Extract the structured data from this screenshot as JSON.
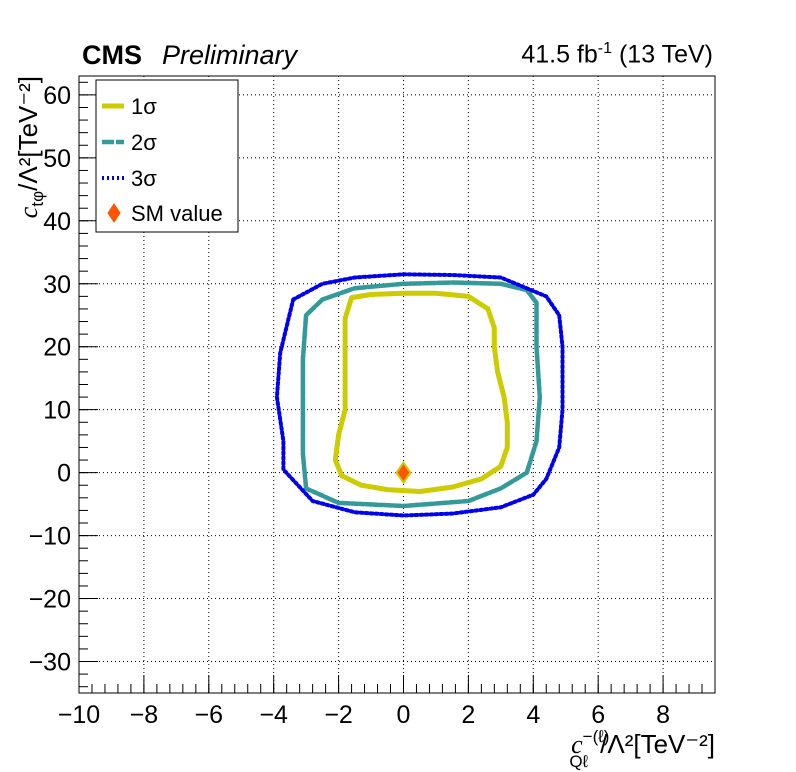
{
  "header": {
    "experiment": "CMS",
    "status": "Preliminary",
    "lumi_value": "41.5 fb",
    "lumi_exp": "-1",
    "energy": " (13 TeV)"
  },
  "chart_data": {
    "type": "contour",
    "xlim": [
      -10,
      9.6
    ],
    "ylim": [
      -35,
      63
    ],
    "xticks": [
      -10,
      -8,
      -6,
      -4,
      -2,
      0,
      2,
      4,
      6,
      8
    ],
    "yticks": [
      -30,
      -20,
      -10,
      0,
      10,
      20,
      30,
      40,
      50,
      60
    ],
    "xtick_labels": [
      "−10",
      "−8",
      "−6",
      "−4",
      "−2",
      "0",
      "2",
      "4",
      "6",
      "8"
    ],
    "ytick_labels": [
      "−30",
      "−20",
      "−10",
      "0",
      "10",
      "20",
      "30",
      "40",
      "50",
      "60"
    ],
    "grid": true,
    "legend_position": "top-left",
    "xlabel": {
      "c": "c",
      "sup": "−(ℓ)",
      "sub": "Qℓ",
      "rest": "/Λ²[TeV⁻²]"
    },
    "ylabel": {
      "c": "c",
      "sub": "tφ",
      "rest": "/Λ²[TeV⁻²]"
    },
    "series": [
      {
        "name": "1σ",
        "color": "#cccc00",
        "style": "solid",
        "points": [
          [
            -1.6,
            27.8
          ],
          [
            -1.0,
            28.3
          ],
          [
            0.0,
            28.5
          ],
          [
            1.0,
            28.5
          ],
          [
            2.0,
            28.0
          ],
          [
            2.6,
            26.0
          ],
          [
            2.8,
            23.0
          ],
          [
            2.8,
            20.0
          ],
          [
            2.9,
            16.0
          ],
          [
            3.1,
            12.0
          ],
          [
            3.2,
            8.0
          ],
          [
            3.2,
            4.0
          ],
          [
            3.0,
            1.0
          ],
          [
            2.4,
            -1.0
          ],
          [
            1.5,
            -2.3
          ],
          [
            0.5,
            -3.0
          ],
          [
            -0.5,
            -2.7
          ],
          [
            -1.3,
            -2.0
          ],
          [
            -1.9,
            -0.5
          ],
          [
            -2.1,
            2.0
          ],
          [
            -2.0,
            6.0
          ],
          [
            -1.8,
            10.0
          ],
          [
            -1.8,
            14.0
          ],
          [
            -1.8,
            18.0
          ],
          [
            -1.8,
            21.5
          ],
          [
            -1.8,
            24.5
          ],
          [
            -1.6,
            27.8
          ]
        ]
      },
      {
        "name": "2σ",
        "color": "#339999",
        "style": "dashed",
        "points": [
          [
            -3.0,
            25.0
          ],
          [
            -2.5,
            27.5
          ],
          [
            -1.5,
            29.3
          ],
          [
            0.0,
            30.0
          ],
          [
            1.5,
            30.2
          ],
          [
            3.0,
            30.0
          ],
          [
            3.8,
            29.0
          ],
          [
            4.1,
            27.0
          ],
          [
            4.1,
            20.0
          ],
          [
            4.2,
            12.0
          ],
          [
            4.1,
            5.0
          ],
          [
            3.8,
            0.0
          ],
          [
            3.0,
            -2.5
          ],
          [
            2.0,
            -4.5
          ],
          [
            0.0,
            -5.3
          ],
          [
            -2.0,
            -4.8
          ],
          [
            -3.0,
            -2.5
          ],
          [
            -3.1,
            3.0
          ],
          [
            -3.1,
            10.0
          ],
          [
            -3.1,
            18.0
          ],
          [
            -3.0,
            25.0
          ]
        ]
      },
      {
        "name": "3σ",
        "color": "#0000ee",
        "style": "dotted",
        "points": [
          [
            -3.4,
            27.5
          ],
          [
            -2.5,
            30.0
          ],
          [
            -1.5,
            31.0
          ],
          [
            0.0,
            31.5
          ],
          [
            1.5,
            31.4
          ],
          [
            3.0,
            31.0
          ],
          [
            4.4,
            28.0
          ],
          [
            4.8,
            25.0
          ],
          [
            4.9,
            20.0
          ],
          [
            4.9,
            10.0
          ],
          [
            4.8,
            4.0
          ],
          [
            4.4,
            -1.0
          ],
          [
            4.0,
            -3.5
          ],
          [
            3.0,
            -5.5
          ],
          [
            1.5,
            -6.5
          ],
          [
            0.0,
            -6.8
          ],
          [
            -1.5,
            -6.3
          ],
          [
            -2.8,
            -4.5
          ],
          [
            -3.7,
            0.5
          ],
          [
            -3.7,
            5.0
          ],
          [
            -3.9,
            12.0
          ],
          [
            -3.8,
            19.0
          ],
          [
            -3.4,
            27.5
          ]
        ]
      }
    ],
    "sm_point": {
      "name": "SM value",
      "x": 0,
      "y": 0,
      "color": "#ff5500",
      "edge": "#cccc00"
    }
  }
}
